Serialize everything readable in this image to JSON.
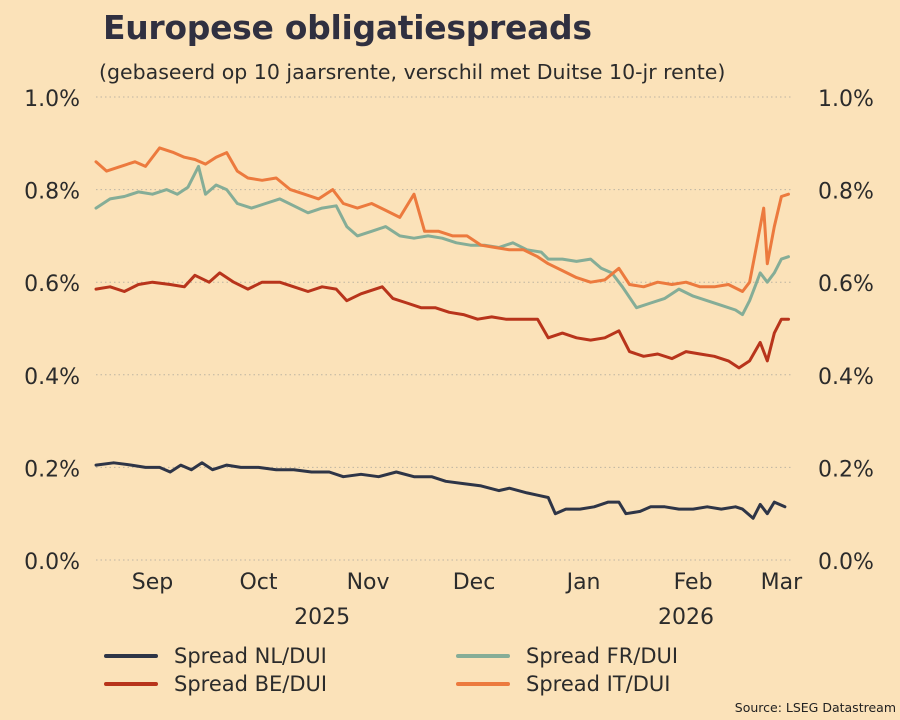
{
  "title": "Europese obligatiespreads",
  "subtitle": "(gebaseerd op 10 jaarsrente, verschil met Duitse 10-jr rente)",
  "source": "Source: LSEG Datastream",
  "colors": {
    "background": "#fbe2b9",
    "grid": "#bdb4a2",
    "nl": "#2e3547",
    "be": "#b8341b",
    "fr": "#85ad97",
    "it": "#ec7a3e"
  },
  "legend": [
    {
      "label": "Spread NL/DUI",
      "color": "#2e3547"
    },
    {
      "label": "Spread FR/DUI",
      "color": "#85ad97"
    },
    {
      "label": "Spread BE/DUI",
      "color": "#b8341b"
    },
    {
      "label": "Spread  IT/DUI",
      "color": "#ec7a3e"
    }
  ],
  "chart_data": {
    "type": "line",
    "title": "Europese obligatiespreads",
    "subtitle": "(gebaseerd op 10 jaarsrente, verschil met Duitse 10-jr rente)",
    "xlabel": "",
    "ylabel": "",
    "ylim": [
      0,
      1.0
    ],
    "y_ticks": [
      "0.0%",
      "0.2%",
      "0.4%",
      "0.6%",
      "0.8%",
      "1.0%"
    ],
    "y_axes": "left and right",
    "grid": "horizontal dotted",
    "x_range": [
      "2025-08-25",
      "2026-03-10"
    ],
    "x_ticks": [
      {
        "date": "2025-09-10",
        "label": "Sep"
      },
      {
        "date": "2025-10-10",
        "label": "Oct"
      },
      {
        "date": "2025-11-10",
        "label": "Nov"
      },
      {
        "date": "2025-12-10",
        "label": "Dec"
      },
      {
        "date": "2026-01-10",
        "label": "Jan"
      },
      {
        "date": "2026-02-10",
        "label": "Feb"
      },
      {
        "date": "2026-03-07",
        "label": "Mar"
      }
    ],
    "year_labels": [
      {
        "date": "2025-10-28",
        "label": "2025"
      },
      {
        "date": "2026-02-08",
        "label": "2026"
      }
    ],
    "legend_position": "bottom",
    "series": [
      {
        "name": "Spread NL/DUI",
        "color": "#2e3547",
        "points": [
          [
            "2025-08-25",
            0.205
          ],
          [
            "2025-08-30",
            0.21
          ],
          [
            "2025-09-04",
            0.205
          ],
          [
            "2025-09-08",
            0.2
          ],
          [
            "2025-09-12",
            0.2
          ],
          [
            "2025-09-15",
            0.19
          ],
          [
            "2025-09-18",
            0.205
          ],
          [
            "2025-09-21",
            0.195
          ],
          [
            "2025-09-24",
            0.21
          ],
          [
            "2025-09-27",
            0.195
          ],
          [
            "2025-10-01",
            0.205
          ],
          [
            "2025-10-05",
            0.2
          ],
          [
            "2025-10-10",
            0.2
          ],
          [
            "2025-10-15",
            0.195
          ],
          [
            "2025-10-20",
            0.195
          ],
          [
            "2025-10-25",
            0.19
          ],
          [
            "2025-10-30",
            0.19
          ],
          [
            "2025-11-03",
            0.18
          ],
          [
            "2025-11-08",
            0.185
          ],
          [
            "2025-11-13",
            0.18
          ],
          [
            "2025-11-18",
            0.19
          ],
          [
            "2025-11-23",
            0.18
          ],
          [
            "2025-11-28",
            0.18
          ],
          [
            "2025-12-02",
            0.17
          ],
          [
            "2025-12-07",
            0.165
          ],
          [
            "2025-12-12",
            0.16
          ],
          [
            "2025-12-17",
            0.15
          ],
          [
            "2025-12-20",
            0.155
          ],
          [
            "2025-12-25",
            0.145
          ],
          [
            "2025-12-28",
            0.14
          ],
          [
            "2025-12-31",
            0.135
          ],
          [
            "2026-01-02",
            0.1
          ],
          [
            "2026-01-05",
            0.11
          ],
          [
            "2026-01-09",
            0.11
          ],
          [
            "2026-01-13",
            0.115
          ],
          [
            "2026-01-17",
            0.125
          ],
          [
            "2026-01-20",
            0.125
          ],
          [
            "2026-01-22",
            0.1
          ],
          [
            "2026-01-26",
            0.105
          ],
          [
            "2026-01-29",
            0.115
          ],
          [
            "2026-02-02",
            0.115
          ],
          [
            "2026-02-06",
            0.11
          ],
          [
            "2026-02-10",
            0.11
          ],
          [
            "2026-02-14",
            0.115
          ],
          [
            "2026-02-18",
            0.11
          ],
          [
            "2026-02-22",
            0.115
          ],
          [
            "2026-02-24",
            0.11
          ],
          [
            "2026-02-27",
            0.09
          ],
          [
            "2026-03-01",
            0.12
          ],
          [
            "2026-03-03",
            0.1
          ],
          [
            "2026-03-05",
            0.125
          ],
          [
            "2026-03-08",
            0.115
          ]
        ]
      },
      {
        "name": "Spread BE/DUI",
        "color": "#b8341b",
        "points": [
          [
            "2025-08-25",
            0.585
          ],
          [
            "2025-08-29",
            0.59
          ],
          [
            "2025-09-02",
            0.58
          ],
          [
            "2025-09-06",
            0.595
          ],
          [
            "2025-09-10",
            0.6
          ],
          [
            "2025-09-15",
            0.595
          ],
          [
            "2025-09-19",
            0.59
          ],
          [
            "2025-09-22",
            0.615
          ],
          [
            "2025-09-26",
            0.6
          ],
          [
            "2025-09-29",
            0.62
          ],
          [
            "2025-10-03",
            0.6
          ],
          [
            "2025-10-07",
            0.585
          ],
          [
            "2025-10-11",
            0.6
          ],
          [
            "2025-10-16",
            0.6
          ],
          [
            "2025-10-20",
            0.59
          ],
          [
            "2025-10-24",
            0.58
          ],
          [
            "2025-10-28",
            0.59
          ],
          [
            "2025-11-01",
            0.585
          ],
          [
            "2025-11-04",
            0.56
          ],
          [
            "2025-11-08",
            0.575
          ],
          [
            "2025-11-14",
            0.59
          ],
          [
            "2025-11-17",
            0.565
          ],
          [
            "2025-11-21",
            0.555
          ],
          [
            "2025-11-25",
            0.545
          ],
          [
            "2025-11-29",
            0.545
          ],
          [
            "2025-12-03",
            0.535
          ],
          [
            "2025-12-07",
            0.53
          ],
          [
            "2025-12-11",
            0.52
          ],
          [
            "2025-12-15",
            0.525
          ],
          [
            "2025-12-19",
            0.52
          ],
          [
            "2025-12-24",
            0.52
          ],
          [
            "2025-12-28",
            0.52
          ],
          [
            "2025-12-31",
            0.48
          ],
          [
            "2026-01-04",
            0.49
          ],
          [
            "2026-01-08",
            0.48
          ],
          [
            "2026-01-12",
            0.475
          ],
          [
            "2026-01-16",
            0.48
          ],
          [
            "2026-01-20",
            0.495
          ],
          [
            "2026-01-23",
            0.45
          ],
          [
            "2026-01-27",
            0.44
          ],
          [
            "2026-01-31",
            0.445
          ],
          [
            "2026-02-04",
            0.435
          ],
          [
            "2026-02-08",
            0.45
          ],
          [
            "2026-02-12",
            0.445
          ],
          [
            "2026-02-16",
            0.44
          ],
          [
            "2026-02-20",
            0.43
          ],
          [
            "2026-02-23",
            0.415
          ],
          [
            "2026-02-26",
            0.43
          ],
          [
            "2026-03-01",
            0.47
          ],
          [
            "2026-03-03",
            0.43
          ],
          [
            "2026-03-05",
            0.49
          ],
          [
            "2026-03-07",
            0.52
          ],
          [
            "2026-03-09",
            0.52
          ]
        ]
      },
      {
        "name": "Spread FR/DUI",
        "color": "#85ad97",
        "points": [
          [
            "2025-08-25",
            0.76
          ],
          [
            "2025-08-29",
            0.78
          ],
          [
            "2025-09-02",
            0.785
          ],
          [
            "2025-09-06",
            0.795
          ],
          [
            "2025-09-10",
            0.79
          ],
          [
            "2025-09-14",
            0.8
          ],
          [
            "2025-09-17",
            0.79
          ],
          [
            "2025-09-20",
            0.805
          ],
          [
            "2025-09-23",
            0.85
          ],
          [
            "2025-09-25",
            0.79
          ],
          [
            "2025-09-28",
            0.81
          ],
          [
            "2025-10-01",
            0.8
          ],
          [
            "2025-10-04",
            0.77
          ],
          [
            "2025-10-08",
            0.76
          ],
          [
            "2025-10-12",
            0.77
          ],
          [
            "2025-10-16",
            0.78
          ],
          [
            "2025-10-20",
            0.765
          ],
          [
            "2025-10-24",
            0.75
          ],
          [
            "2025-10-28",
            0.76
          ],
          [
            "2025-11-01",
            0.765
          ],
          [
            "2025-11-04",
            0.72
          ],
          [
            "2025-11-07",
            0.7
          ],
          [
            "2025-11-11",
            0.71
          ],
          [
            "2025-11-15",
            0.72
          ],
          [
            "2025-11-19",
            0.7
          ],
          [
            "2025-11-23",
            0.695
          ],
          [
            "2025-11-27",
            0.7
          ],
          [
            "2025-12-01",
            0.695
          ],
          [
            "2025-12-05",
            0.685
          ],
          [
            "2025-12-09",
            0.68
          ],
          [
            "2025-12-13",
            0.68
          ],
          [
            "2025-12-17",
            0.675
          ],
          [
            "2025-12-21",
            0.685
          ],
          [
            "2025-12-25",
            0.67
          ],
          [
            "2025-12-29",
            0.665
          ],
          [
            "2025-12-31",
            0.65
          ],
          [
            "2026-01-04",
            0.65
          ],
          [
            "2026-01-08",
            0.645
          ],
          [
            "2026-01-12",
            0.65
          ],
          [
            "2026-01-15",
            0.63
          ],
          [
            "2026-01-18",
            0.62
          ],
          [
            "2026-01-21",
            0.59
          ],
          [
            "2026-01-25",
            0.545
          ],
          [
            "2026-01-29",
            0.555
          ],
          [
            "2026-02-02",
            0.565
          ],
          [
            "2026-02-06",
            0.585
          ],
          [
            "2026-02-10",
            0.57
          ],
          [
            "2026-02-14",
            0.56
          ],
          [
            "2026-02-18",
            0.55
          ],
          [
            "2026-02-22",
            0.54
          ],
          [
            "2026-02-24",
            0.53
          ],
          [
            "2026-02-26",
            0.56
          ],
          [
            "2026-02-28",
            0.6
          ],
          [
            "2026-03-01",
            0.62
          ],
          [
            "2026-03-03",
            0.6
          ],
          [
            "2026-03-05",
            0.62
          ],
          [
            "2026-03-07",
            0.65
          ],
          [
            "2026-03-09",
            0.655
          ]
        ]
      },
      {
        "name": "Spread  IT/DUI",
        "color": "#ec7a3e",
        "points": [
          [
            "2025-08-25",
            0.86
          ],
          [
            "2025-08-28",
            0.84
          ],
          [
            "2025-09-01",
            0.85
          ],
          [
            "2025-09-05",
            0.86
          ],
          [
            "2025-09-08",
            0.85
          ],
          [
            "2025-09-12",
            0.89
          ],
          [
            "2025-09-16",
            0.88
          ],
          [
            "2025-09-19",
            0.87
          ],
          [
            "2025-09-22",
            0.865
          ],
          [
            "2025-09-25",
            0.855
          ],
          [
            "2025-09-28",
            0.87
          ],
          [
            "2025-10-01",
            0.88
          ],
          [
            "2025-10-04",
            0.84
          ],
          [
            "2025-10-07",
            0.825
          ],
          [
            "2025-10-11",
            0.82
          ],
          [
            "2025-10-15",
            0.825
          ],
          [
            "2025-10-19",
            0.8
          ],
          [
            "2025-10-23",
            0.79
          ],
          [
            "2025-10-27",
            0.78
          ],
          [
            "2025-10-31",
            0.8
          ],
          [
            "2025-11-03",
            0.77
          ],
          [
            "2025-11-07",
            0.76
          ],
          [
            "2025-11-11",
            0.77
          ],
          [
            "2025-11-15",
            0.755
          ],
          [
            "2025-11-19",
            0.74
          ],
          [
            "2025-11-23",
            0.79
          ],
          [
            "2025-11-26",
            0.71
          ],
          [
            "2025-11-30",
            0.71
          ],
          [
            "2025-12-04",
            0.7
          ],
          [
            "2025-12-08",
            0.7
          ],
          [
            "2025-12-12",
            0.68
          ],
          [
            "2025-12-16",
            0.675
          ],
          [
            "2025-12-20",
            0.67
          ],
          [
            "2025-12-24",
            0.67
          ],
          [
            "2025-12-28",
            0.655
          ],
          [
            "2025-12-31",
            0.64
          ],
          [
            "2026-01-04",
            0.625
          ],
          [
            "2026-01-08",
            0.61
          ],
          [
            "2026-01-12",
            0.6
          ],
          [
            "2026-01-16",
            0.605
          ],
          [
            "2026-01-20",
            0.63
          ],
          [
            "2026-01-23",
            0.595
          ],
          [
            "2026-01-27",
            0.59
          ],
          [
            "2026-01-31",
            0.6
          ],
          [
            "2026-02-04",
            0.595
          ],
          [
            "2026-02-08",
            0.6
          ],
          [
            "2026-02-12",
            0.59
          ],
          [
            "2026-02-16",
            0.59
          ],
          [
            "2026-02-20",
            0.595
          ],
          [
            "2026-02-24",
            0.58
          ],
          [
            "2026-02-26",
            0.6
          ],
          [
            "2026-02-28",
            0.68
          ],
          [
            "2026-03-01",
            0.72
          ],
          [
            "2026-03-02",
            0.76
          ],
          [
            "2026-03-03",
            0.64
          ],
          [
            "2026-03-05",
            0.72
          ],
          [
            "2026-03-07",
            0.785
          ],
          [
            "2026-03-09",
            0.79
          ]
        ]
      }
    ]
  }
}
